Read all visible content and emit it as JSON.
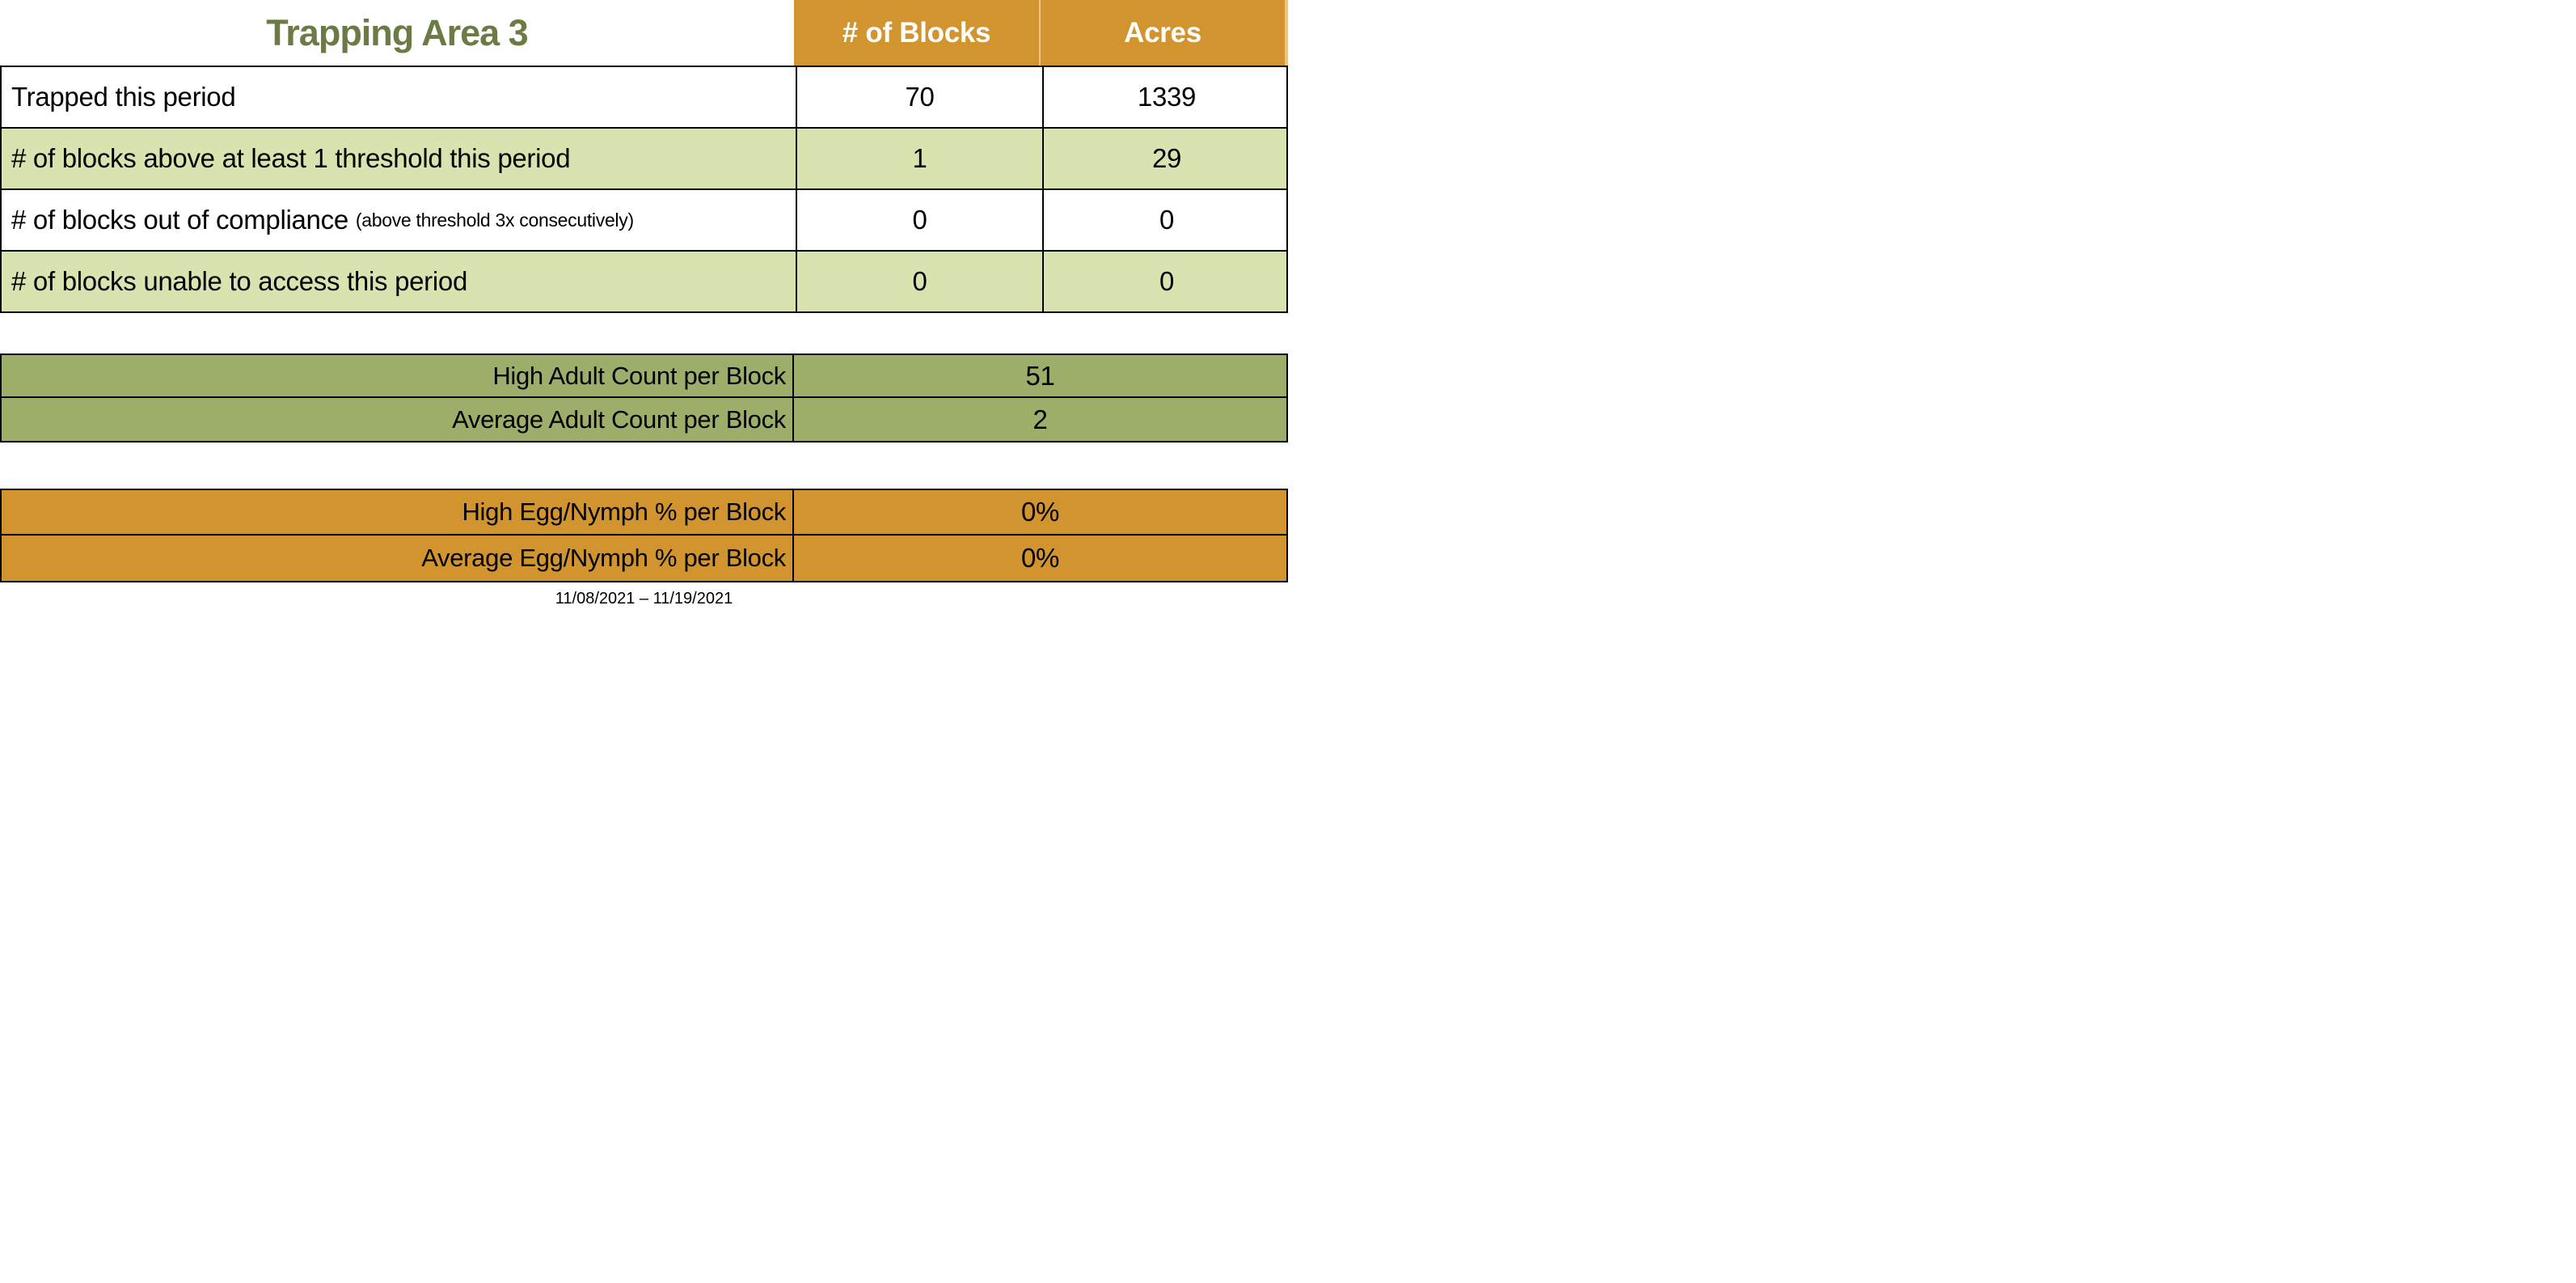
{
  "title": "Trapping Area 3",
  "colors": {
    "header_orange": "#D2942F",
    "light_green": "#D8E4B0",
    "olive_green": "#9DAE6B",
    "title_green": "#6B7B45"
  },
  "main_table": {
    "columns": {
      "blocks": "# of Blocks",
      "acres": "Acres"
    },
    "rows": [
      {
        "label": "Trapped this period",
        "note": "",
        "blocks": "70",
        "acres": "1339"
      },
      {
        "label": "# of blocks above at least 1 threshold this period",
        "note": "",
        "blocks": "1",
        "acres": "29"
      },
      {
        "label": "# of blocks out of compliance",
        "note": "(above threshold 3x consecutively)",
        "blocks": "0",
        "acres": "0"
      },
      {
        "label": "# of blocks unable to access this period",
        "note": "",
        "blocks": "0",
        "acres": "0"
      }
    ]
  },
  "adult_section": {
    "rows": [
      {
        "label": "High Adult Count per Block",
        "value": "51"
      },
      {
        "label": "Average Adult Count per Block",
        "value": "2"
      }
    ]
  },
  "egg_section": {
    "rows": [
      {
        "label": "High Egg/Nymph % per Block",
        "value": "0%"
      },
      {
        "label": "Average Egg/Nymph % per Block",
        "value": "0%"
      }
    ]
  },
  "date_range": "11/08/2021 – 11/19/2021"
}
